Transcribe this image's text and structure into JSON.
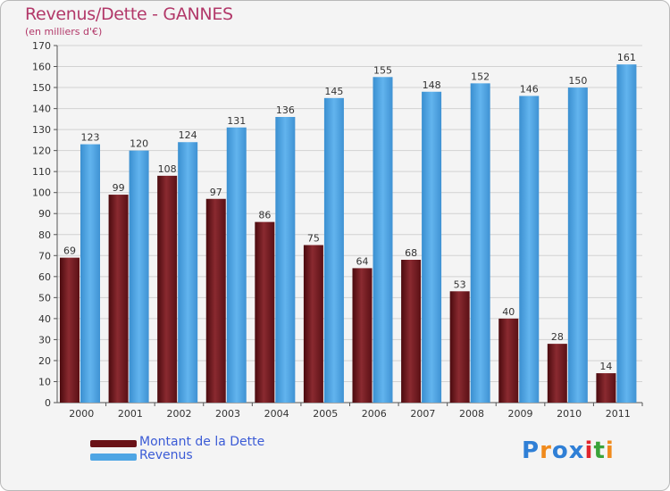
{
  "title": "Revenus/Dette - GANNES",
  "subtitle": "(en milliers d'€)",
  "legend": {
    "debt_label": "Montant de la Dette",
    "revenue_label": "Revenus"
  },
  "logo_text": "Proxiti",
  "colors": {
    "title": "#b23869",
    "debt_bar": "#7a1b20",
    "revenue_bar": "#4ea5e4",
    "legend_text": "#3b5bd6",
    "background": "#f4f4f4"
  },
  "chart_data": {
    "type": "bar",
    "title": "Revenus/Dette - GANNES",
    "subtitle": "(en milliers d'€)",
    "categories": [
      "2000",
      "2001",
      "2002",
      "2003",
      "2004",
      "2005",
      "2006",
      "2007",
      "2008",
      "2009",
      "2010",
      "2011"
    ],
    "series": [
      {
        "name": "Montant de la Dette",
        "values": [
          69,
          99,
          108,
          97,
          86,
          75,
          64,
          68,
          53,
          40,
          28,
          14
        ]
      },
      {
        "name": "Revenus",
        "values": [
          123,
          120,
          124,
          131,
          136,
          145,
          155,
          148,
          152,
          146,
          150,
          161
        ]
      }
    ],
    "ylim": [
      0,
      170
    ],
    "yticks": [
      0,
      10,
      20,
      30,
      40,
      50,
      60,
      70,
      80,
      90,
      100,
      110,
      120,
      130,
      140,
      150,
      160,
      170
    ],
    "grid": true,
    "legend_position": "bottom-left"
  }
}
